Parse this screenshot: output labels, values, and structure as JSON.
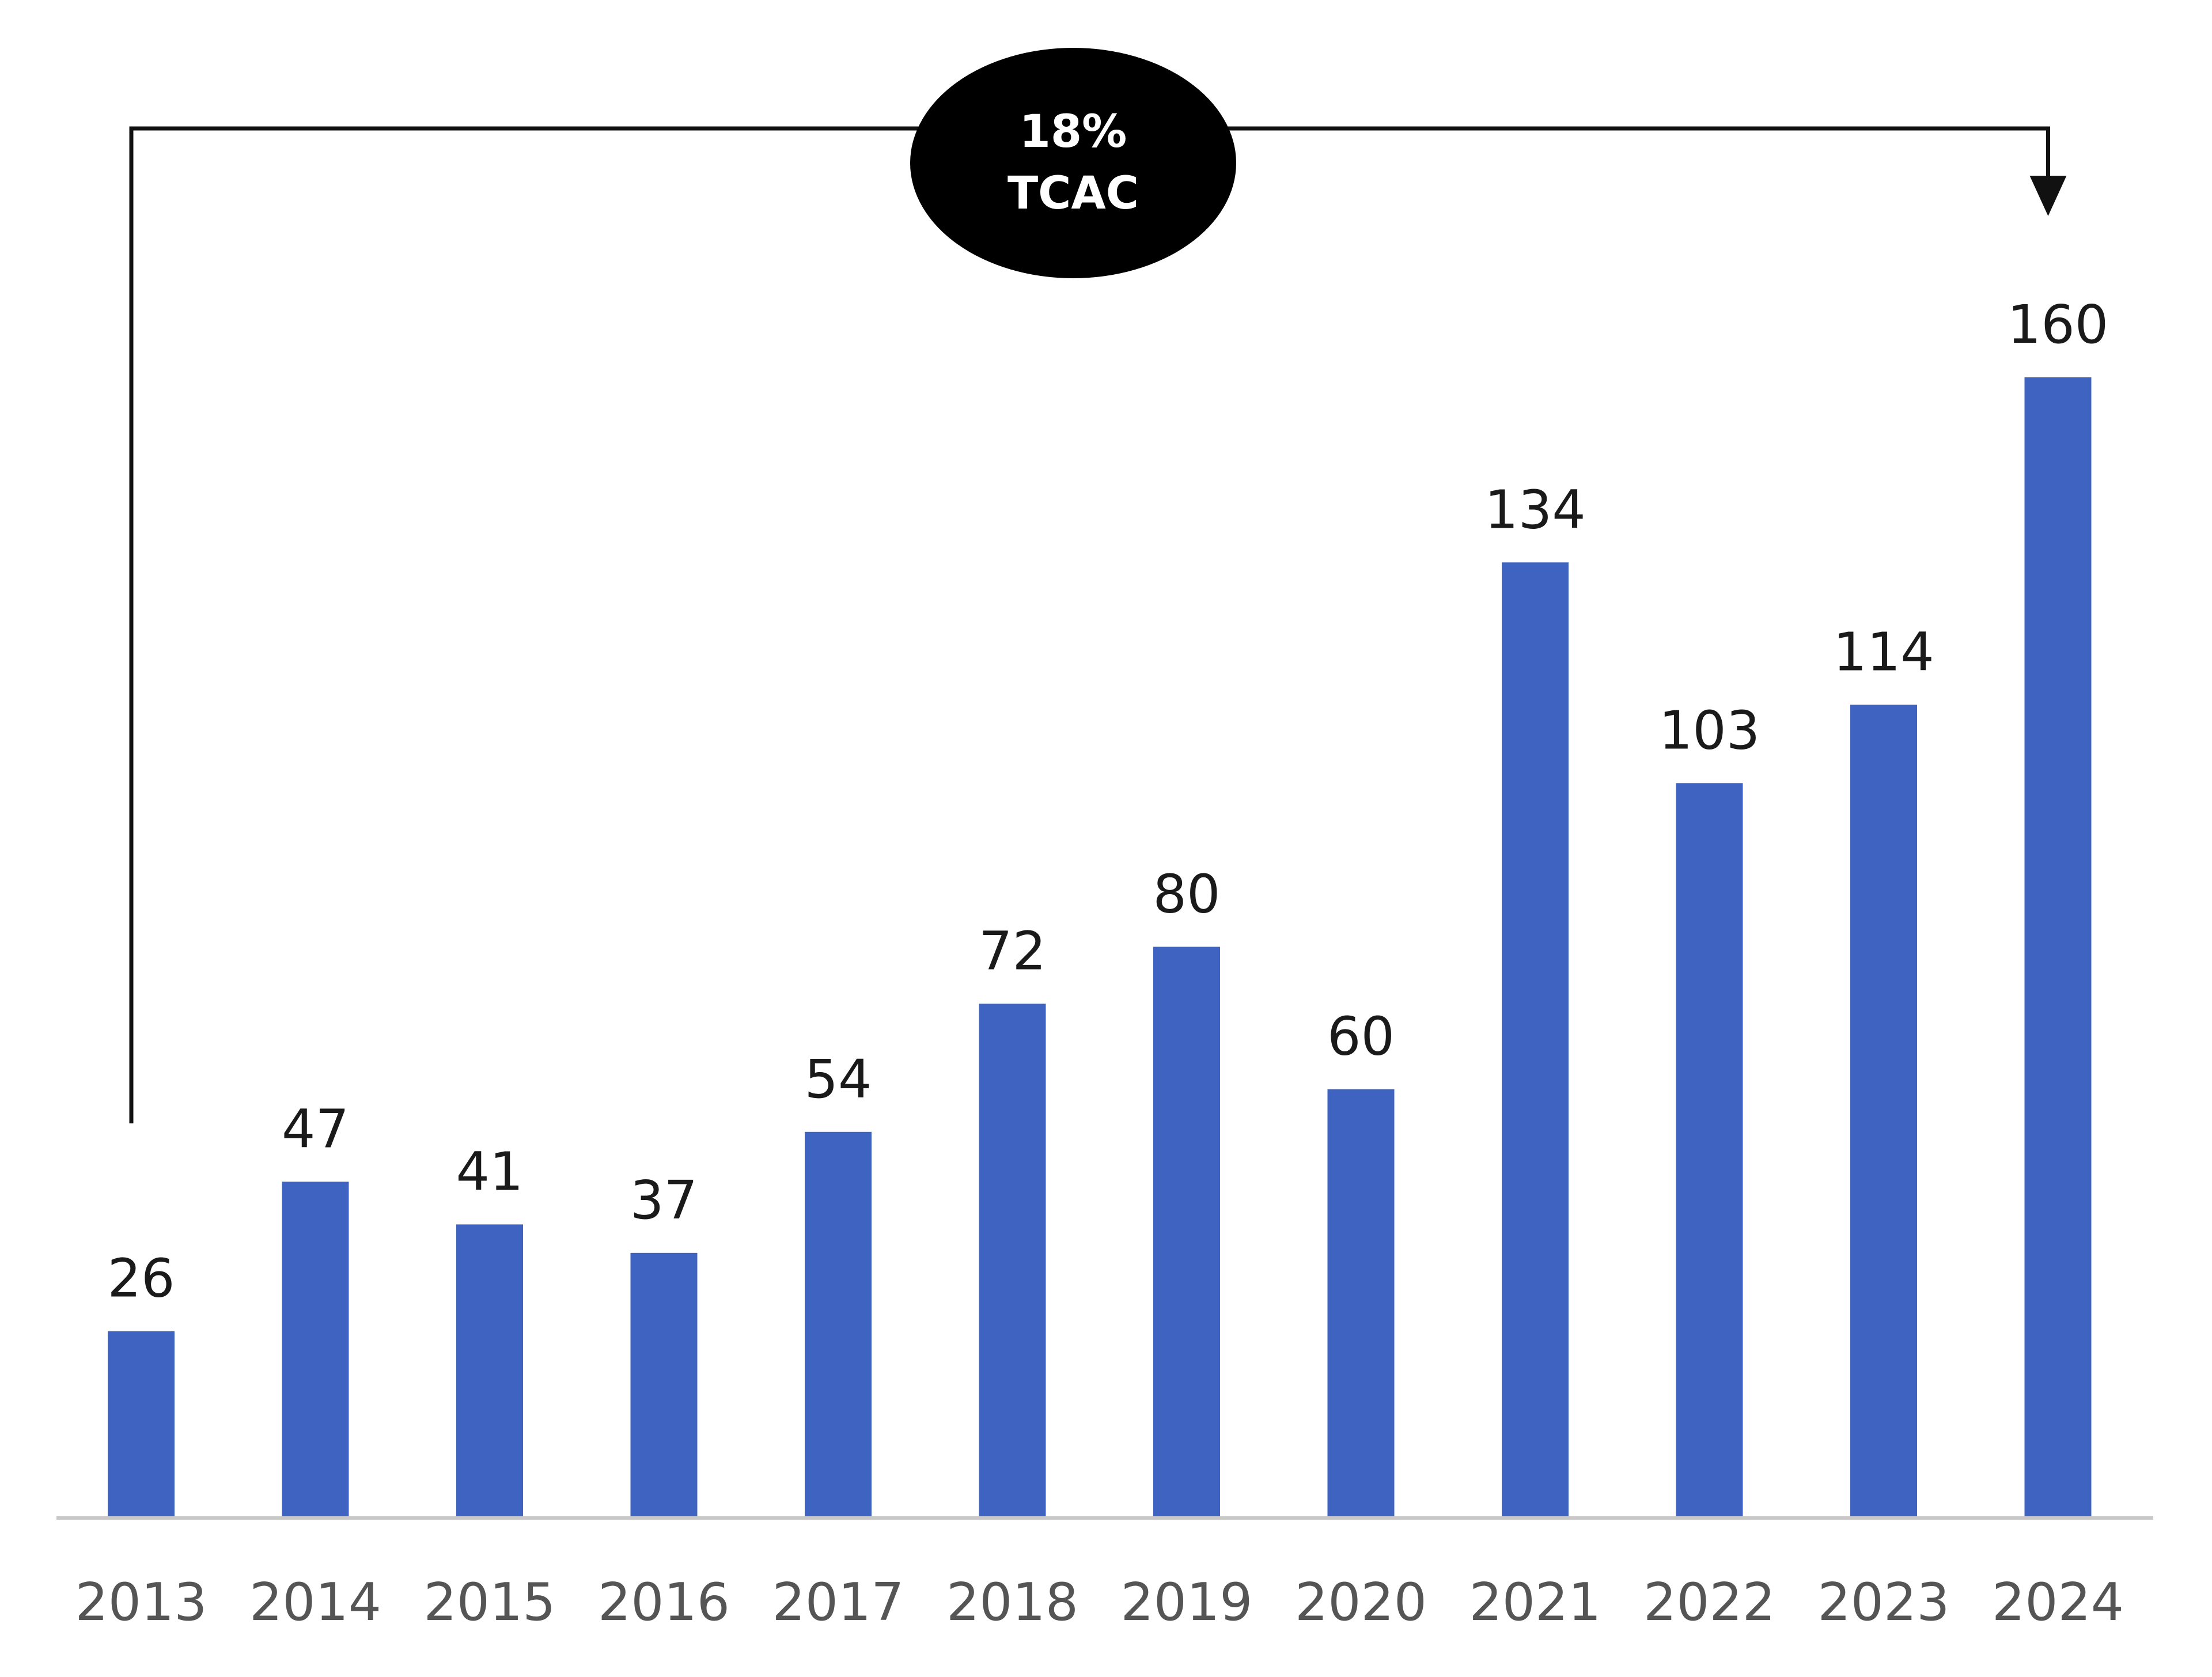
{
  "chart_data": {
    "type": "bar",
    "categories": [
      "2013",
      "2014",
      "2015",
      "2016",
      "2017",
      "2018",
      "2019",
      "2020",
      "2021",
      "2022",
      "2023",
      "2024"
    ],
    "values": [
      26,
      47,
      41,
      37,
      54,
      72,
      80,
      60,
      134,
      103,
      114,
      160
    ],
    "ylim": [
      0,
      160
    ],
    "grid": false,
    "legend": "none",
    "bar_color": "#3f63c0",
    "annotation": {
      "line1": "18%",
      "line2": "TCAC",
      "from_category": "2013",
      "to_category": "2024"
    }
  }
}
